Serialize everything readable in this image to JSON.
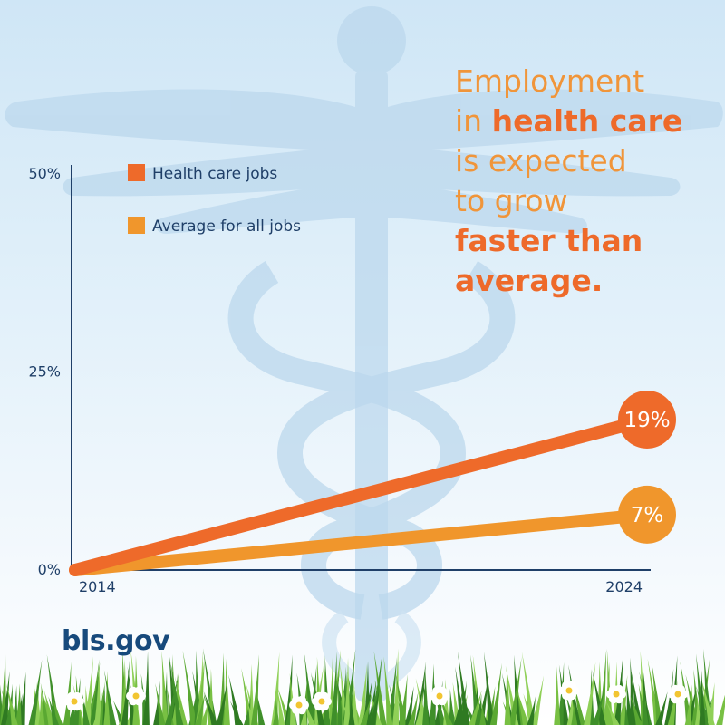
{
  "headline": {
    "line1": "Employment",
    "line2_pre": "in ",
    "line2_bold": "health care",
    "line3": "is expected",
    "line4": "to grow",
    "line5_bold": "faster than",
    "line6_bold": "average."
  },
  "brand": "bls.gov",
  "colors": {
    "health_care": "#ee6a2a",
    "average": "#f0962c",
    "axis": "#1f3f68",
    "background_symbol": "#b8d6ec"
  },
  "chart_data": {
    "type": "line",
    "x": [
      "2014",
      "2024"
    ],
    "series": [
      {
        "name": "Health care jobs",
        "values": [
          0,
          19
        ],
        "end_label": "19%",
        "color": "#ee6a2a"
      },
      {
        "name": "Average for all jobs",
        "values": [
          0,
          7
        ],
        "end_label": "7%",
        "color": "#f0962c"
      }
    ],
    "ylim": [
      0,
      50
    ],
    "y_ticks": [
      0,
      25,
      50
    ],
    "y_tick_labels": [
      "0%",
      "25%",
      "50%"
    ],
    "x_tick_labels": [
      "2014",
      "2024"
    ],
    "legend_position": "top-left",
    "grid": false
  }
}
